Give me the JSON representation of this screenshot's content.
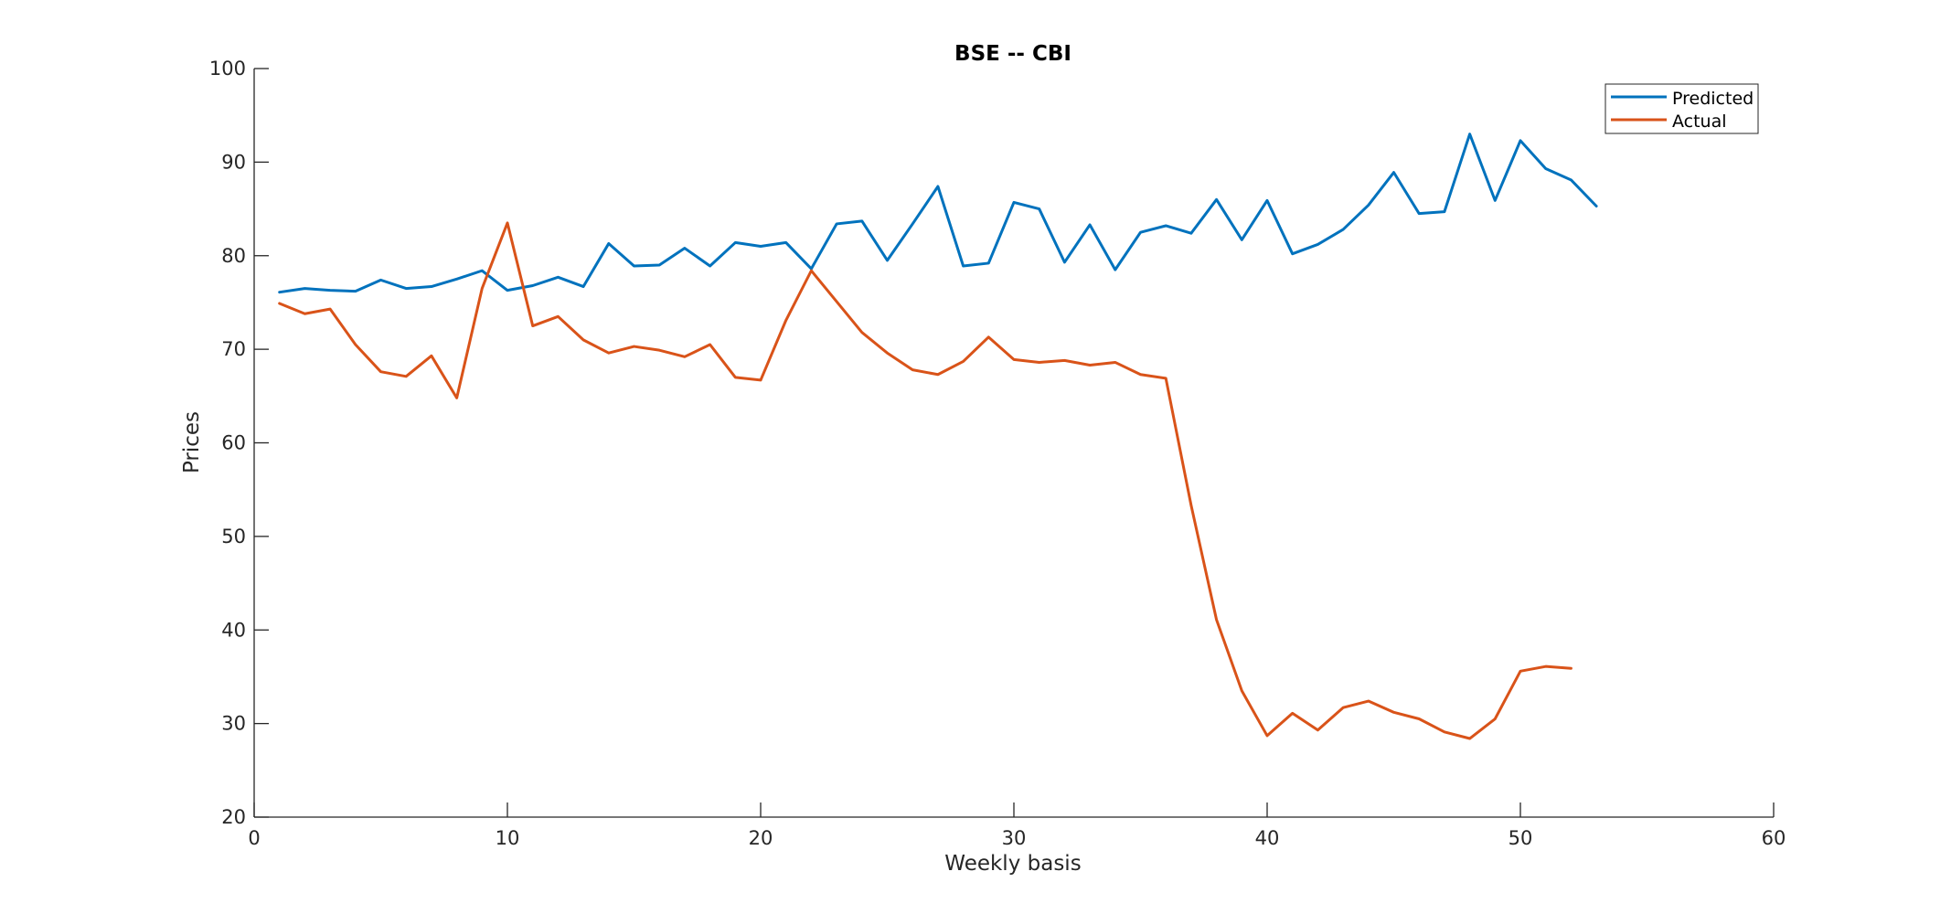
{
  "chart_data": {
    "type": "line",
    "title": "BSE -- CBI",
    "xlabel": "Weekly basis",
    "ylabel": "Prices",
    "xlim": [
      0,
      60
    ],
    "ylim": [
      20,
      100
    ],
    "xticks": [
      0,
      10,
      20,
      30,
      40,
      50,
      60
    ],
    "yticks": [
      20,
      30,
      40,
      50,
      60,
      70,
      80,
      90,
      100
    ],
    "grid": false,
    "legend_position": "top-right",
    "series": [
      {
        "name": "Predicted",
        "color": "#0072BD",
        "x": [
          1,
          2,
          3,
          4,
          5,
          6,
          7,
          8,
          9,
          10,
          11,
          12,
          13,
          14,
          15,
          16,
          17,
          18,
          19,
          20,
          21,
          22,
          23,
          24,
          25,
          26,
          27,
          28,
          29,
          30,
          31,
          32,
          33,
          34,
          35,
          36,
          37,
          38,
          39,
          40,
          41,
          42,
          43,
          44,
          45,
          46,
          47,
          48,
          49,
          50,
          51,
          52,
          53
        ],
        "values": [
          76.1,
          76.5,
          76.3,
          76.2,
          77.4,
          76.5,
          76.7,
          77.5,
          78.4,
          76.3,
          76.8,
          77.7,
          76.7,
          81.3,
          78.9,
          79.0,
          80.8,
          78.9,
          81.4,
          81.0,
          81.4,
          78.6,
          83.4,
          83.7,
          79.5,
          83.4,
          87.4,
          78.9,
          79.2,
          85.7,
          85.0,
          79.3,
          83.3,
          78.5,
          82.5,
          83.2,
          82.4,
          86.0,
          81.7,
          85.9,
          80.2,
          81.2,
          82.8,
          85.4,
          88.9,
          84.5,
          84.7,
          93.0,
          85.9,
          92.3,
          89.3,
          88.1,
          85.3
        ]
      },
      {
        "name": "Actual",
        "color": "#D95319",
        "x": [
          1,
          2,
          3,
          4,
          5,
          6,
          7,
          8,
          9,
          10,
          11,
          12,
          13,
          14,
          15,
          16,
          17,
          18,
          19,
          20,
          21,
          22,
          23,
          24,
          25,
          26,
          27,
          28,
          29,
          30,
          31,
          32,
          33,
          34,
          35,
          36,
          37,
          38,
          39,
          40,
          41,
          42,
          43,
          44,
          45,
          46,
          47,
          48,
          49,
          50,
          51,
          52
        ],
        "values": [
          74.9,
          73.8,
          74.3,
          70.5,
          67.6,
          67.1,
          69.3,
          64.8,
          76.5,
          83.5,
          72.5,
          73.5,
          71.0,
          69.6,
          70.3,
          69.9,
          69.2,
          70.5,
          67.0,
          66.7,
          73.1,
          78.4,
          75.1,
          71.8,
          69.6,
          67.8,
          67.3,
          68.7,
          71.3,
          68.9,
          68.6,
          68.8,
          68.3,
          68.6,
          67.3,
          66.9,
          53.3,
          41.1,
          33.5,
          28.7,
          31.1,
          29.3,
          31.7,
          32.4,
          31.2,
          30.5,
          29.1,
          28.4,
          30.5,
          35.6,
          36.1,
          35.9
        ]
      }
    ]
  }
}
